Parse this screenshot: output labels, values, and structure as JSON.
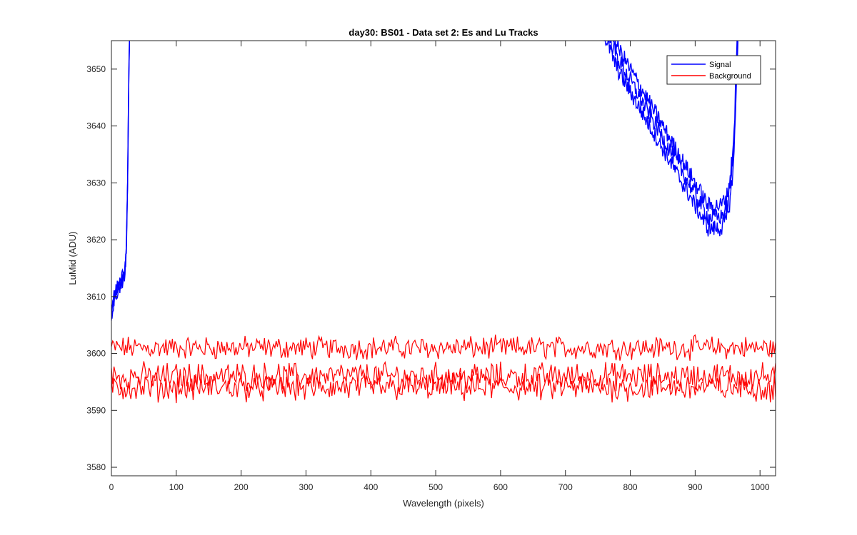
{
  "chart_data": {
    "type": "line",
    "title": "day30: BS01 - Data set 2: Es and Lu Tracks",
    "xlabel": "Wavelength (pixels)",
    "ylabel": "LuMid (ADU)",
    "xlim": [
      0,
      1024
    ],
    "ylim": [
      3578.5,
      3655
    ],
    "xticks": [
      0,
      100,
      200,
      300,
      400,
      500,
      600,
      700,
      800,
      900,
      1000
    ],
    "yticks": [
      3580,
      3590,
      3600,
      3610,
      3620,
      3630,
      3640,
      3650
    ],
    "grid": false,
    "legend_position": "top-right",
    "series": [
      {
        "name": "Signal",
        "color": "#0000ff",
        "x": [
          0,
          5,
          10,
          15,
          20,
          23,
          25,
          27,
          28,
          760,
          780,
          800,
          820,
          840,
          860,
          880,
          900,
          920,
          940,
          950,
          955,
          960,
          963,
          966
        ],
        "y": [
          3606,
          3610,
          3611,
          3612,
          3613,
          3618,
          3630,
          3650,
          3656,
          3656,
          3650,
          3646,
          3642,
          3638,
          3634,
          3630,
          3626,
          3622,
          3622,
          3624,
          3628,
          3635,
          3645,
          3656
        ],
        "tracks": 3
      },
      {
        "name": "Background",
        "color": "#ff0000",
        "x": [
          0,
          1024
        ],
        "y": [
          3601,
          3601
        ],
        "tracks": 3
      },
      {
        "name": "",
        "color": "#ff0000",
        "x": [
          0,
          1024
        ],
        "y": [
          3596,
          3596
        ]
      },
      {
        "name": "",
        "color": "#ff0000",
        "x": [
          0,
          1024
        ],
        "y": [
          3594,
          3594
        ]
      }
    ],
    "legend": [
      {
        "label": "Signal",
        "color": "#0000ff"
      },
      {
        "label": "Background",
        "color": "#ff0000"
      }
    ]
  }
}
